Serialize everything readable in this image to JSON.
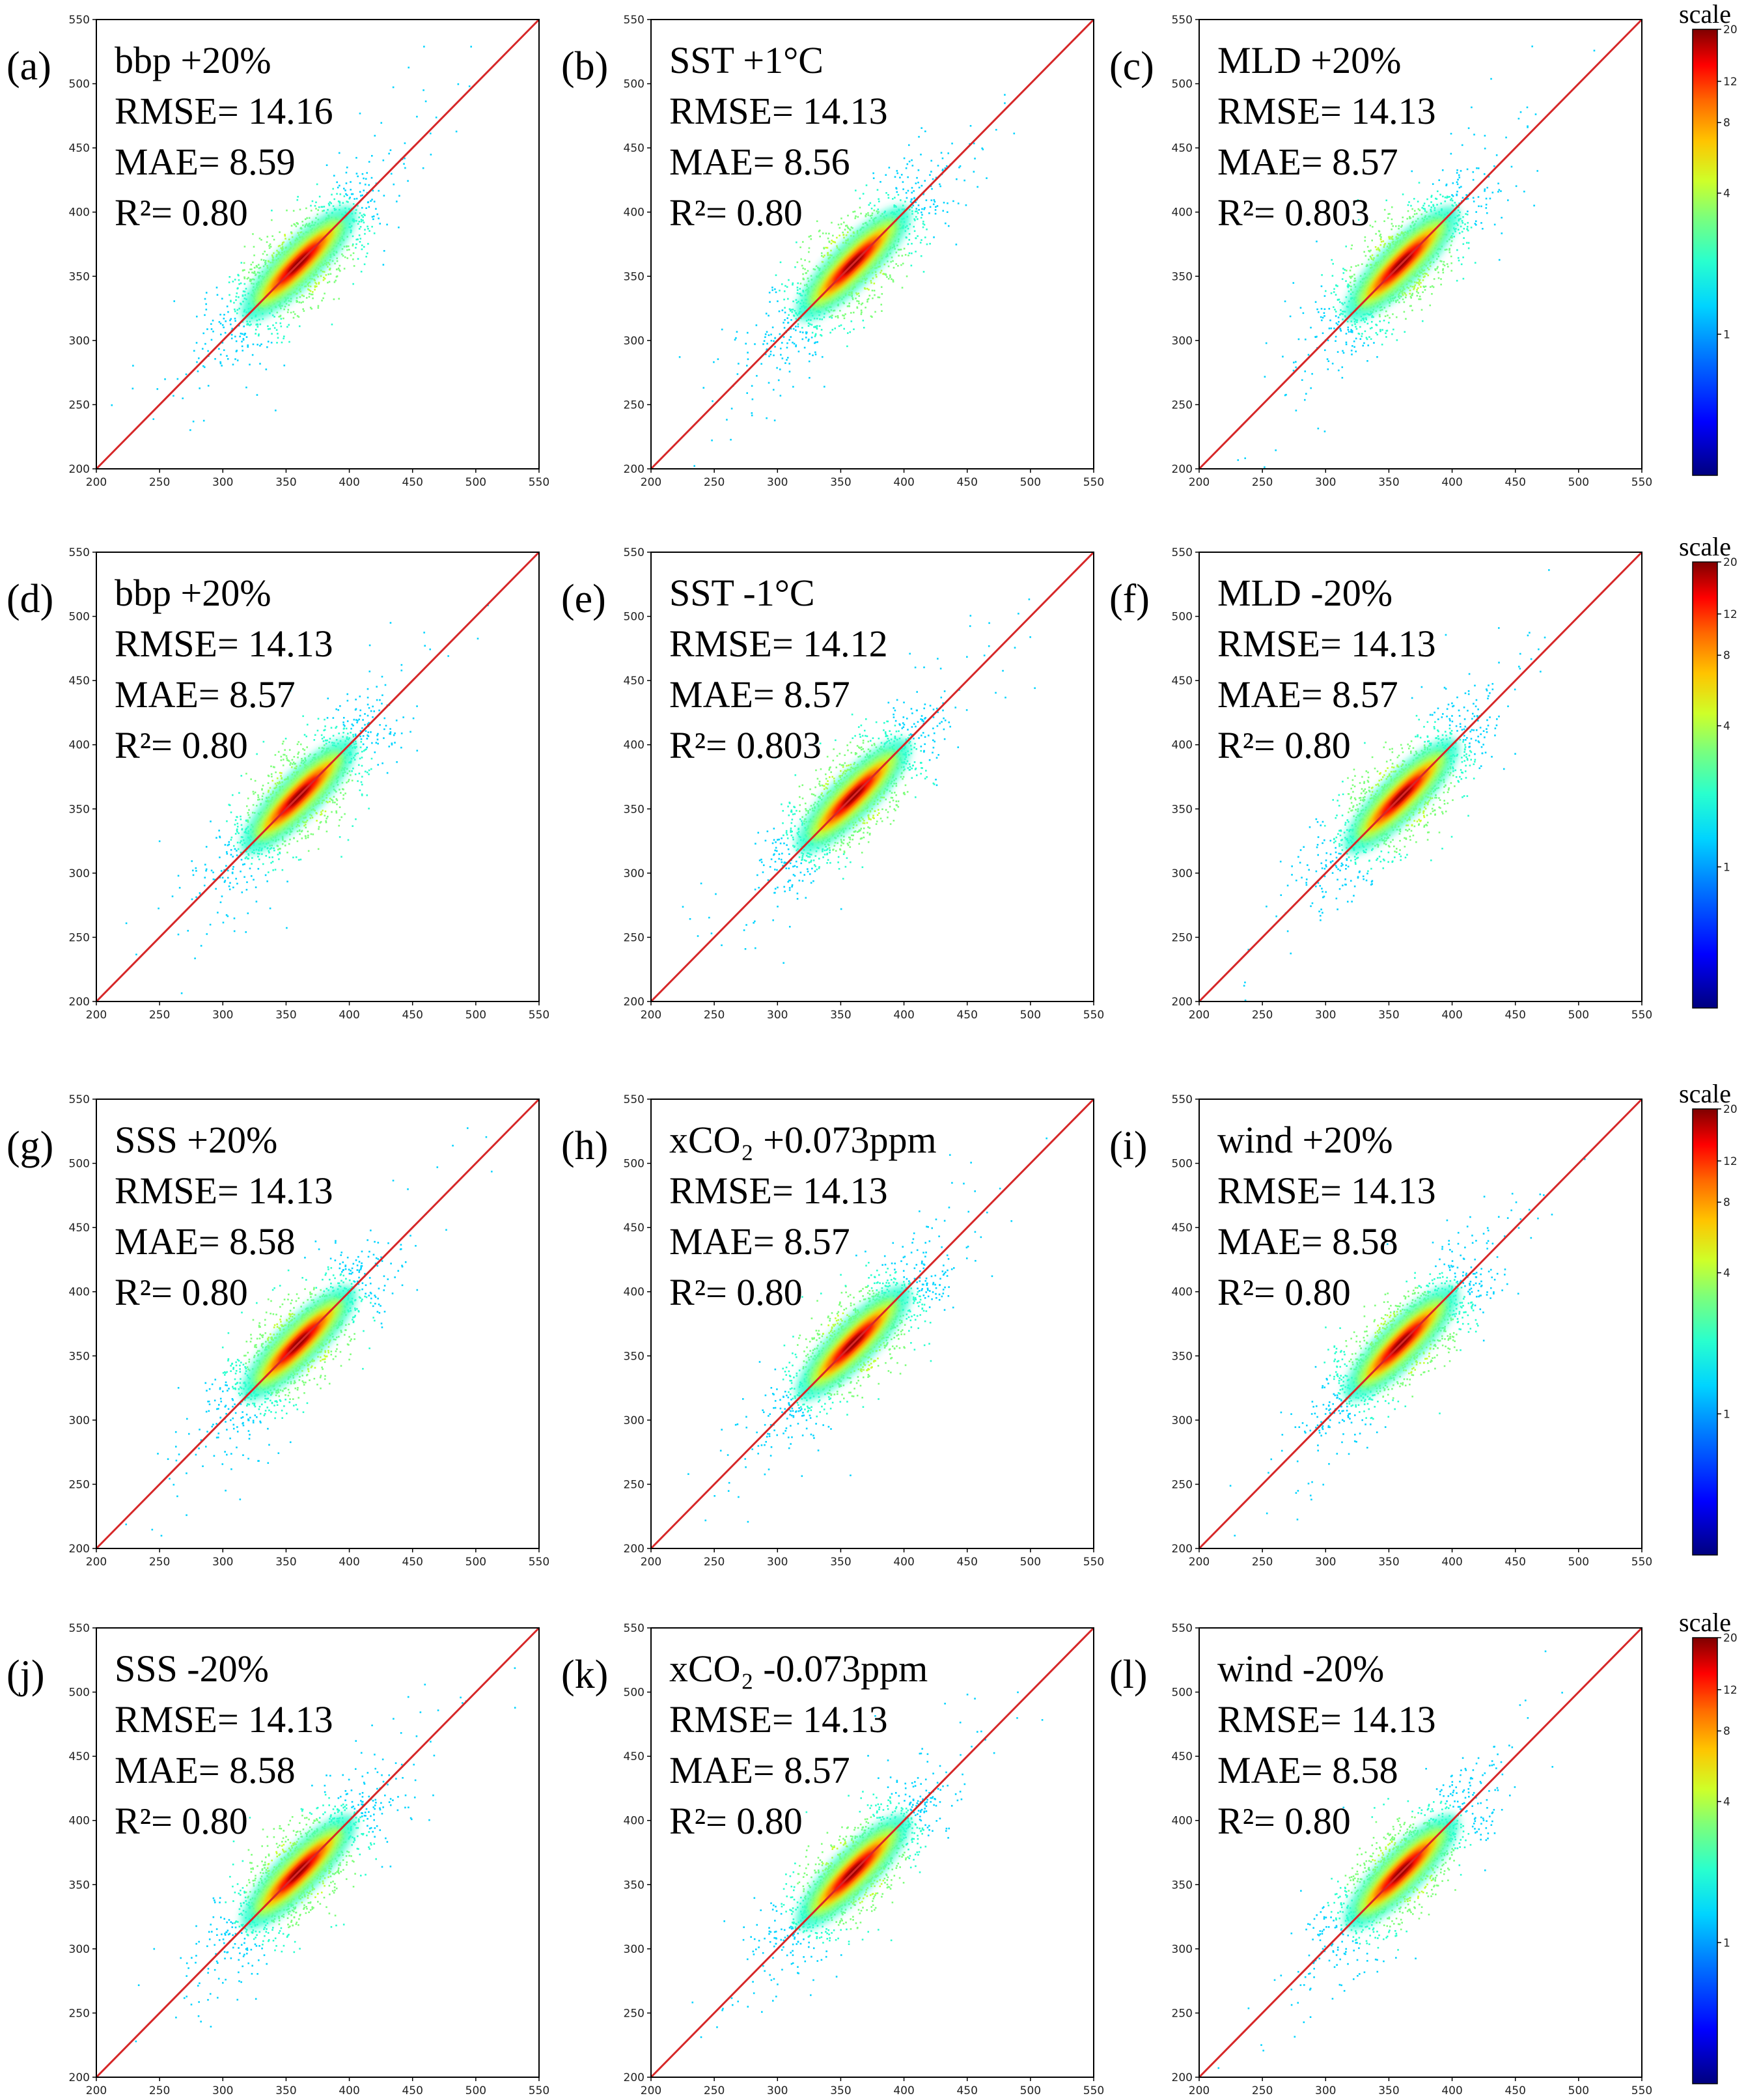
{
  "colors": {
    "one_to_one_line": "#d62728",
    "frame": "#000000",
    "colormap": [
      "#00007f",
      "#0000ff",
      "#0080ff",
      "#00d4ff",
      "#29ffce",
      "#7dff7a",
      "#ceff29",
      "#ffc400",
      "#ff6800",
      "#ff0000",
      "#7f0000"
    ]
  },
  "colorbar": {
    "title": "scale",
    "ticks": [
      "20",
      "12",
      "8",
      "4",
      "1"
    ],
    "tick_values": [
      20,
      12,
      8,
      4,
      1
    ],
    "scale": "log",
    "range": [
      0.25,
      20
    ]
  },
  "chart_data": [
    {
      "type": "scatter",
      "panel": "(a)",
      "lines": [
        "bbp +20%",
        "RMSE= 14.16",
        "MAE= 8.59",
        "R²= 0.80"
      ],
      "xlim": [
        200,
        550
      ],
      "ylim": [
        200,
        550
      ],
      "xticks": [
        200,
        250,
        300,
        350,
        400,
        450,
        500,
        550
      ],
      "yticks": [
        200,
        250,
        300,
        350,
        400,
        450,
        500,
        550
      ],
      "reference_line": "1:1",
      "density_center": [
        360,
        360
      ]
    },
    {
      "type": "scatter",
      "panel": "(b)",
      "lines": [
        "SST +1°C",
        "RMSE= 14.13",
        "MAE= 8.56",
        "R²= 0.80"
      ],
      "xlim": [
        200,
        550
      ],
      "ylim": [
        200,
        550
      ],
      "xticks": [
        200,
        250,
        300,
        350,
        400,
        450,
        500,
        550
      ],
      "yticks": [
        200,
        250,
        300,
        350,
        400,
        450,
        500,
        550
      ],
      "reference_line": "1:1",
      "density_center": [
        360,
        360
      ]
    },
    {
      "type": "scatter",
      "panel": "(c)",
      "lines": [
        "MLD +20%",
        "RMSE= 14.13",
        "MAE= 8.57",
        "R²= 0.803"
      ],
      "xlim": [
        200,
        550
      ],
      "ylim": [
        200,
        550
      ],
      "xticks": [
        200,
        250,
        300,
        350,
        400,
        450,
        500,
        550
      ],
      "yticks": [
        200,
        250,
        300,
        350,
        400,
        450,
        500,
        550
      ],
      "reference_line": "1:1",
      "density_center": [
        360,
        360
      ]
    },
    {
      "type": "scatter",
      "panel": "(d)",
      "lines": [
        "bbp +20%",
        "RMSE= 14.13",
        "MAE= 8.57",
        "R²= 0.80"
      ],
      "xlim": [
        200,
        550
      ],
      "ylim": [
        200,
        550
      ],
      "xticks": [
        200,
        250,
        300,
        350,
        400,
        450,
        500,
        550
      ],
      "yticks": [
        200,
        250,
        300,
        350,
        400,
        450,
        500,
        550
      ],
      "reference_line": "1:1",
      "density_center": [
        360,
        360
      ]
    },
    {
      "type": "scatter",
      "panel": "(e)",
      "lines": [
        "SST -1°C",
        "RMSE= 14.12",
        "MAE= 8.57",
        "R²= 0.803"
      ],
      "xlim": [
        200,
        550
      ],
      "ylim": [
        200,
        550
      ],
      "xticks": [
        200,
        250,
        300,
        350,
        400,
        450,
        500,
        550
      ],
      "yticks": [
        200,
        250,
        300,
        350,
        400,
        450,
        500,
        550
      ],
      "reference_line": "1:1",
      "density_center": [
        360,
        360
      ]
    },
    {
      "type": "scatter",
      "panel": "(f)",
      "lines": [
        "MLD -20%",
        "RMSE= 14.13",
        "MAE= 8.57",
        "R²= 0.80"
      ],
      "xlim": [
        200,
        550
      ],
      "ylim": [
        200,
        550
      ],
      "xticks": [
        200,
        250,
        300,
        350,
        400,
        450,
        500,
        550
      ],
      "yticks": [
        200,
        250,
        300,
        350,
        400,
        450,
        500,
        550
      ],
      "reference_line": "1:1",
      "density_center": [
        360,
        360
      ]
    },
    {
      "type": "scatter",
      "panel": "(g)",
      "lines": [
        "SSS +20%",
        "RMSE= 14.13",
        "MAE= 8.58",
        "R²= 0.80"
      ],
      "xlim": [
        200,
        550
      ],
      "ylim": [
        200,
        550
      ],
      "xticks": [
        200,
        250,
        300,
        350,
        400,
        450,
        500,
        550
      ],
      "yticks": [
        200,
        250,
        300,
        350,
        400,
        450,
        500,
        550
      ],
      "reference_line": "1:1",
      "density_center": [
        360,
        360
      ]
    },
    {
      "type": "scatter",
      "panel": "(h)",
      "lines": [
        "xCO₂ +0.073ppm",
        "RMSE= 14.13",
        "MAE= 8.57",
        "R²= 0.80"
      ],
      "xlim": [
        200,
        550
      ],
      "ylim": [
        200,
        550
      ],
      "xticks": [
        200,
        250,
        300,
        350,
        400,
        450,
        500,
        550
      ],
      "yticks": [
        200,
        250,
        300,
        350,
        400,
        450,
        500,
        550
      ],
      "reference_line": "1:1",
      "density_center": [
        360,
        360
      ]
    },
    {
      "type": "scatter",
      "panel": "(i)",
      "lines": [
        "wind +20%",
        "RMSE= 14.13",
        "MAE= 8.58",
        "R²= 0.80"
      ],
      "xlim": [
        200,
        550
      ],
      "ylim": [
        200,
        550
      ],
      "xticks": [
        200,
        250,
        300,
        350,
        400,
        450,
        500,
        550
      ],
      "yticks": [
        200,
        250,
        300,
        350,
        400,
        450,
        500,
        550
      ],
      "reference_line": "1:1",
      "density_center": [
        360,
        360
      ]
    },
    {
      "type": "scatter",
      "panel": "(j)",
      "lines": [
        "SSS -20%",
        "RMSE= 14.13",
        "MAE= 8.58",
        "R²= 0.80"
      ],
      "xlim": [
        200,
        550
      ],
      "ylim": [
        200,
        550
      ],
      "xticks": [
        200,
        250,
        300,
        350,
        400,
        450,
        500,
        550
      ],
      "yticks": [
        200,
        250,
        300,
        350,
        400,
        450,
        500,
        550
      ],
      "reference_line": "1:1",
      "density_center": [
        360,
        360
      ]
    },
    {
      "type": "scatter",
      "panel": "(k)",
      "lines": [
        "xCO₂ -0.073ppm",
        "RMSE= 14.13",
        "MAE= 8.57",
        "R²= 0.80"
      ],
      "xlim": [
        200,
        550
      ],
      "ylim": [
        200,
        550
      ],
      "xticks": [
        200,
        250,
        300,
        350,
        400,
        450,
        500,
        550
      ],
      "yticks": [
        200,
        250,
        300,
        350,
        400,
        450,
        500,
        550
      ],
      "reference_line": "1:1",
      "density_center": [
        360,
        360
      ]
    },
    {
      "type": "scatter",
      "panel": "(l)",
      "lines": [
        "wind -20%",
        "RMSE= 14.13",
        "MAE= 8.58",
        "R²= 0.80"
      ],
      "xlim": [
        200,
        550
      ],
      "ylim": [
        200,
        550
      ],
      "xticks": [
        200,
        250,
        300,
        350,
        400,
        450,
        500,
        550
      ],
      "yticks": [
        200,
        250,
        300,
        350,
        400,
        450,
        500,
        550
      ],
      "reference_line": "1:1",
      "density_center": [
        360,
        360
      ]
    }
  ]
}
